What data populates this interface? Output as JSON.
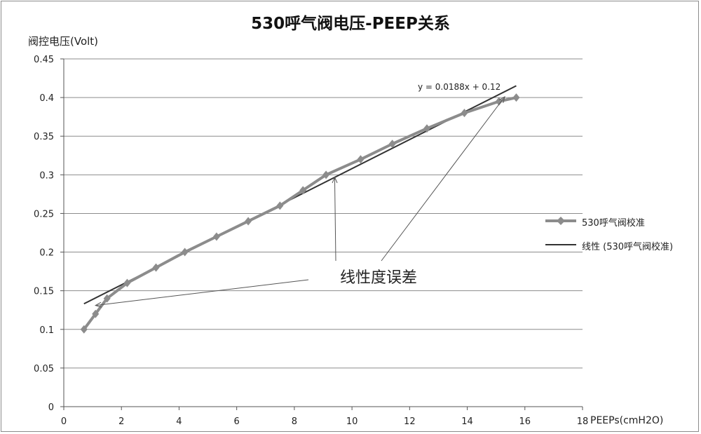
{
  "chart_data": {
    "type": "line",
    "title": "530呼气阀电压-PEEP关系",
    "ylabel": "阀控电压(Volt)",
    "xlabel": "PEEPs(cmH2O)",
    "xlim": [
      0,
      18
    ],
    "ylim": [
      0,
      0.45
    ],
    "xticks": [
      0,
      2,
      4,
      6,
      8,
      10,
      12,
      14,
      16,
      18
    ],
    "xtick_labels": [
      "0",
      "2",
      "4",
      "6",
      "8",
      "10",
      "12",
      "14",
      "16",
      "18"
    ],
    "yticks": [
      0,
      0.05,
      0.1,
      0.15,
      0.2,
      0.25,
      0.3,
      0.35,
      0.4,
      0.45
    ],
    "ytick_labels": [
      "0",
      "0.05",
      "0.1",
      "0.15",
      "0.2",
      "0.25",
      "0.3",
      "0.35",
      "0.4",
      "0.45"
    ],
    "grid": "horizontal",
    "legend_position": "right",
    "series": [
      {
        "name": "530呼气阀校准",
        "color": "#8c8c8c",
        "marker": "diamond",
        "x": [
          0.7,
          1.1,
          1.5,
          2.2,
          3.2,
          4.2,
          5.3,
          6.4,
          7.5,
          8.3,
          9.1,
          10.3,
          11.4,
          12.6,
          13.9,
          15.1,
          15.7
        ],
        "y": [
          0.1,
          0.12,
          0.14,
          0.16,
          0.18,
          0.2,
          0.22,
          0.24,
          0.26,
          0.28,
          0.3,
          0.32,
          0.34,
          0.36,
          0.38,
          0.395,
          0.4
        ]
      },
      {
        "name": "线性 (530呼气阀校准)",
        "color": "#333333",
        "type": "trendline",
        "slope": 0.0188,
        "intercept": 0.12,
        "x_range": [
          0.7,
          15.7
        ]
      }
    ],
    "equation": "y = 0.0188x + 0.12",
    "annotation": {
      "text": "线性度误差",
      "points": [
        [
          1.1,
          0.131
        ],
        [
          9.4,
          0.297
        ],
        [
          15.3,
          0.401
        ]
      ]
    }
  }
}
